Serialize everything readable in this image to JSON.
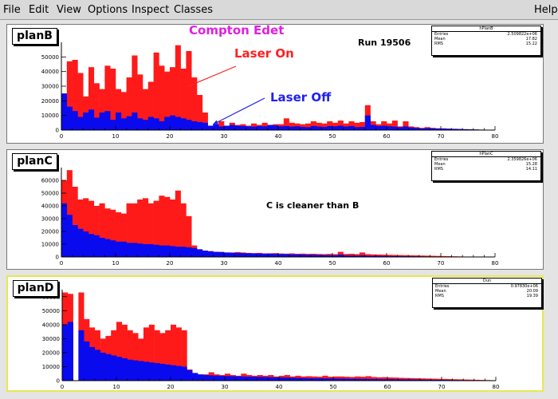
{
  "menu": {
    "items": [
      "File",
      "Edit",
      "View",
      "Options",
      "Inspect",
      "Classes"
    ],
    "help": "Help"
  },
  "annotations": {
    "title": "Compton  Edet",
    "run": "Run 19506",
    "laser_on": "Laser On",
    "laser_off": "Laser  Off",
    "planc_note": "C  is cleaner than B"
  },
  "colors": {
    "laser_on_fill": "#ff1a1a",
    "laser_off_fill": "#0a0aee",
    "title_magenta": "#e020e0",
    "arrow_red": "#ff2020",
    "arrow_blue": "#2020ee",
    "selected_pad_border": "#e8e850"
  },
  "pads": [
    {
      "id": "planB",
      "label": "planB",
      "stats": {
        "title": "hPlanB",
        "rows": [
          [
            "Entries",
            "2.509822e+06"
          ],
          [
            "Mean",
            "17.82"
          ],
          [
            "RMS",
            "15.22"
          ]
        ]
      }
    },
    {
      "id": "planC",
      "label": "planC",
      "stats": {
        "title": "hPlanC",
        "rows": [
          [
            "Entries",
            "2.359826e+06"
          ],
          [
            "Mean",
            "15.28"
          ],
          [
            "RMS",
            "14.11"
          ]
        ]
      }
    },
    {
      "id": "planD",
      "label": "planD",
      "stats": {
        "title": "Dun",
        "rows": [
          [
            "Entries",
            "0.97830e+06"
          ],
          [
            "Mean",
            "20.09"
          ],
          [
            "RMS",
            "19.39"
          ]
        ]
      }
    }
  ],
  "chart_data": [
    {
      "type": "bar",
      "title": "planB",
      "x_ticks": [
        0,
        10,
        20,
        30,
        40,
        50,
        60,
        70,
        80
      ],
      "y_ticks": [
        0,
        10000,
        20000,
        30000,
        40000,
        50000
      ],
      "xlim": [
        0,
        80
      ],
      "ylim": [
        0,
        60000
      ],
      "bins": 80,
      "series": [
        {
          "name": "Laser On",
          "values": [
            25000,
            47000,
            48000,
            39000,
            23000,
            43000,
            32000,
            28000,
            44000,
            42000,
            28000,
            26000,
            36000,
            51000,
            38000,
            28000,
            33000,
            53000,
            44000,
            40000,
            43000,
            58000,
            42000,
            54000,
            36000,
            24000,
            12000,
            3000,
            3500,
            6000,
            3000,
            5000,
            3500,
            4000,
            3000,
            4500,
            3500,
            5000,
            3500,
            4000,
            4000,
            8000,
            5000,
            4500,
            4000,
            4500,
            6000,
            5000,
            4500,
            6000,
            5000,
            6500,
            4500,
            6000,
            5000,
            5500,
            17000,
            6000,
            4000,
            6000,
            4500,
            6500,
            2500,
            6000,
            2500,
            2000,
            1500,
            2000,
            1500,
            1200,
            1200,
            1000,
            900,
            800,
            600,
            500,
            400,
            300,
            200,
            100
          ]
        },
        {
          "name": "Laser Off",
          "values": [
            25000,
            16000,
            13000,
            9000,
            12000,
            14000,
            8500,
            12000,
            13000,
            7000,
            12000,
            8000,
            9500,
            12000,
            8000,
            7000,
            9000,
            8000,
            6000,
            9000,
            10000,
            9000,
            8000,
            7000,
            6000,
            5500,
            5000,
            3000,
            4000,
            2500,
            3000,
            3500,
            3000,
            2800,
            2600,
            2400,
            2800,
            2600,
            3500,
            3200,
            2600,
            2800,
            2400,
            2600,
            2200,
            2000,
            2800,
            2400,
            2200,
            2800,
            2600,
            3000,
            2400,
            2800,
            2000,
            2200,
            10000,
            3500,
            2800,
            3000,
            2600,
            2400,
            2000,
            2500,
            1800,
            1500,
            1200,
            1400,
            1200,
            1100,
            1000,
            900,
            800,
            700,
            600,
            500,
            400,
            300,
            200,
            100
          ]
        }
      ]
    },
    {
      "type": "bar",
      "title": "planC",
      "x_ticks": [
        0,
        10,
        20,
        30,
        40,
        50,
        60,
        70,
        80
      ],
      "y_ticks": [
        0,
        10000,
        20000,
        30000,
        40000,
        50000,
        60000
      ],
      "xlim": [
        0,
        80
      ],
      "ylim": [
        0,
        70000
      ],
      "bins": 80,
      "series": [
        {
          "name": "Laser On",
          "values": [
            60000,
            68000,
            55000,
            45000,
            46000,
            44000,
            40000,
            42000,
            38000,
            37000,
            35000,
            34000,
            42000,
            42000,
            45000,
            46000,
            42000,
            44000,
            48000,
            47000,
            45000,
            52000,
            42000,
            32000,
            9000,
            6000,
            5000,
            4500,
            4000,
            4000,
            3500,
            3500,
            3800,
            3500,
            3200,
            3000,
            3200,
            2800,
            2900,
            3000,
            2700,
            2600,
            2800,
            2500,
            2600,
            2400,
            2500,
            2300,
            2200,
            2400,
            2200,
            4000,
            2300,
            2500,
            2200,
            3500,
            2200,
            2000,
            1900,
            1800,
            1700,
            1600,
            1500,
            1400,
            1300,
            1200,
            1100,
            1000,
            900,
            800,
            700,
            600,
            500,
            400,
            300,
            200,
            150,
            100,
            80,
            50
          ]
        },
        {
          "name": "Laser Off",
          "values": [
            42000,
            33000,
            25000,
            22000,
            20000,
            18000,
            17000,
            15000,
            14000,
            13000,
            12000,
            12000,
            11000,
            11000,
            10500,
            10000,
            10000,
            9500,
            9000,
            9000,
            8500,
            8000,
            8000,
            7500,
            7000,
            6000,
            5000,
            4500,
            4000,
            3800,
            3500,
            3300,
            3200,
            3000,
            2900,
            2800,
            2700,
            2600,
            2500,
            2400,
            2300,
            2200,
            2100,
            2000,
            1900,
            1800,
            1700,
            1600,
            1500,
            1400,
            1300,
            1800,
            1200,
            1100,
            1000,
            1300,
            900,
            850,
            800,
            750,
            700,
            650,
            600,
            550,
            500,
            450,
            400,
            350,
            300,
            250,
            200,
            150,
            120,
            100,
            80,
            60,
            40,
            30,
            20,
            10
          ]
        }
      ]
    },
    {
      "type": "bar",
      "title": "planD",
      "x_ticks": [
        0,
        10,
        20,
        30,
        40,
        50,
        60,
        70,
        80
      ],
      "y_ticks": [
        0,
        10000,
        20000,
        30000,
        40000,
        50000,
        60000
      ],
      "xlim": [
        0,
        80
      ],
      "ylim": [
        0,
        65000
      ],
      "bins": 80,
      "series": [
        {
          "name": "Laser On",
          "values": [
            63000,
            62000,
            0,
            63000,
            44000,
            38000,
            36000,
            30000,
            32000,
            36000,
            42000,
            40000,
            36000,
            34000,
            30000,
            38000,
            40000,
            36000,
            34000,
            36000,
            40000,
            38000,
            36000,
            8000,
            5000,
            4000,
            4500,
            6000,
            4500,
            4000,
            5000,
            4000,
            3500,
            5000,
            4000,
            3500,
            4000,
            3500,
            4000,
            3000,
            3500,
            4000,
            3000,
            3500,
            3000,
            3200,
            3000,
            2800,
            3500,
            2800,
            3000,
            3000,
            2800,
            2600,
            3000,
            2800,
            3200,
            2600,
            2400,
            2500,
            2300,
            2200,
            2000,
            1900,
            1800,
            1700,
            1600,
            1500,
            1400,
            1300,
            1200,
            1100,
            1000,
            900,
            800,
            700,
            600,
            500,
            400,
            300
          ]
        },
        {
          "name": "Laser Off",
          "values": [
            40000,
            42000,
            0,
            36000,
            28000,
            24000,
            22000,
            20000,
            19000,
            18000,
            17000,
            16000,
            15000,
            14500,
            14000,
            13500,
            13000,
            12500,
            12000,
            11500,
            11000,
            10500,
            10000,
            7500,
            5500,
            4500,
            4000,
            3800,
            3600,
            3400,
            3300,
            3200,
            3100,
            3000,
            2900,
            2800,
            2700,
            2600,
            2500,
            2400,
            2300,
            2200,
            2100,
            2000,
            1900,
            1800,
            1750,
            1700,
            1650,
            1600,
            1550,
            1500,
            1450,
            1400,
            1350,
            1300,
            1250,
            1200,
            1150,
            1100,
            1050,
            1000,
            950,
            900,
            850,
            800,
            750,
            700,
            650,
            600,
            550,
            500,
            450,
            400,
            350,
            300,
            250,
            200,
            150,
            100
          ]
        }
      ]
    }
  ]
}
